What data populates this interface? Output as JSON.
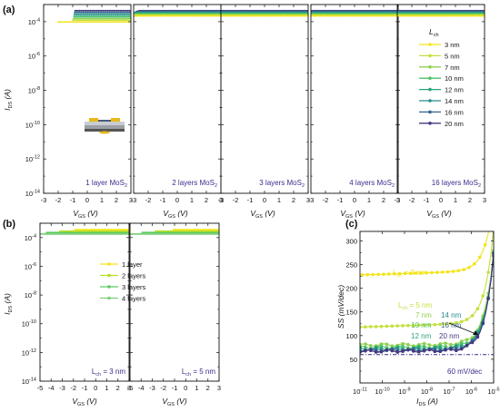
{
  "figure": {
    "panel_labels": [
      "(a)",
      "(b)",
      "(c)"
    ],
    "legend_a_title": "L",
    "legend_a_title_sub": "ch",
    "legend_a_items": [
      "3 nm",
      "5 nm",
      "7 nm",
      "10 nm",
      "12 nm",
      "14 nm",
      "16 nm",
      "20 nm"
    ],
    "legend_b_items": [
      "1 layer",
      "2 layers",
      "3 layers",
      "4 layers"
    ],
    "colors": {
      "3nm": "#f2e41c",
      "5nm": "#c4e03d",
      "7nm": "#8fd14f",
      "10nm": "#4fc169",
      "12nm": "#29a380",
      "14nm": "#2a8a8b",
      "16nm": "#35628d",
      "20nm": "#453781",
      "layer1": "#f2e41c",
      "layer2": "#b8de29",
      "layer3": "#5ec962",
      "layer4": "#7fd07a",
      "text_purple": "#3b2c8c",
      "ref_line": "#3b2c8c"
    }
  },
  "chart_data": [
    {
      "type": "line",
      "panel": "(a)",
      "subplots": [
        {
          "label": "1 layer MoS",
          "label_sub": "2",
          "xlim": [
            -3,
            3
          ]
        },
        {
          "label": "2 layers MoS",
          "label_sub": "2",
          "xlim": [
            -3,
            3
          ]
        },
        {
          "label": "3 layers MoS",
          "label_sub": "2",
          "xlim": [
            -3,
            3
          ]
        },
        {
          "label": "4 layers MoS",
          "label_sub": "2",
          "xlim": [
            -3,
            3
          ]
        },
        {
          "label": "16 layers MoS",
          "label_sub": "2",
          "xlim": [
            -3,
            3
          ]
        }
      ],
      "xlabel": "V",
      "xlabel_sub": "GS",
      "xunit": "(V)",
      "ylabel": "I",
      "ylabel_sub": "DS",
      "yunit": "(A)",
      "yscale": "log",
      "ylim": [
        1e-14,
        0.001
      ],
      "xticks": [
        "-3",
        "-2",
        "-1",
        "0",
        "1",
        "2",
        "3"
      ],
      "yticks": [
        "10",
        "10",
        "10",
        "10",
        "10",
        "10"
      ],
      "ytick_exps": [
        "-14",
        "-12",
        "-10",
        "-8",
        "-6",
        "-4"
      ],
      "ytick_vals": [
        -14,
        -12,
        -10,
        -8,
        -6,
        -4
      ],
      "series_names": [
        "3 nm",
        "5 nm",
        "7 nm",
        "10 nm",
        "12 nm",
        "14 nm",
        "16 nm",
        "20 nm"
      ]
    },
    {
      "type": "line",
      "panel": "(b)",
      "subplots": [
        {
          "label": "L",
          "label_sub": "ch",
          "label_tail": " = 3 nm",
          "xlim": [
            -5,
            3
          ]
        },
        {
          "label": "L",
          "label_sub": "ch",
          "label_tail": " = 5 nm",
          "xlim": [
            -5,
            3
          ]
        }
      ],
      "xlabel": "V",
      "xlabel_sub": "GS",
      "xunit": "(V)",
      "ylabel": "I",
      "ylabel_sub": "DS",
      "yunit": "(A)",
      "yscale": "log",
      "ylim": [
        1e-14,
        0.001
      ],
      "xticks": [
        "-5",
        "-4",
        "-3",
        "-2",
        "-1",
        "0",
        "1",
        "2",
        "3"
      ],
      "yticks": [
        "10",
        "10",
        "10",
        "10",
        "10",
        "10"
      ],
      "ytick_exps": [
        "-14",
        "-12",
        "-10",
        "-8",
        "-6",
        "-4"
      ],
      "ytick_vals": [
        -14,
        -12,
        -10,
        -8,
        -6,
        -4
      ],
      "series_names": [
        "1 layer",
        "2 layers",
        "3 layers",
        "4 layers"
      ]
    },
    {
      "type": "scatter",
      "panel": "(c)",
      "xlabel": "I",
      "xlabel_sub": "DS",
      "xunit": "(A)",
      "ylabel": "SS",
      "yunit": "(mV/dec)",
      "xscale": "log",
      "xlim": [
        1e-11,
        1e-05
      ],
      "ylim": [
        0,
        320
      ],
      "xticks": [
        "10",
        "10",
        "10",
        "10",
        "10",
        "10",
        "10"
      ],
      "xtick_exps": [
        "-11",
        "-10",
        "-9",
        "-8",
        "-7",
        "-6",
        "-5"
      ],
      "xtick_vals": [
        -11,
        -10,
        -9,
        -8,
        -7,
        -6,
        -5
      ],
      "yticks": [
        "50",
        "100",
        "150",
        "200",
        "250",
        "300"
      ],
      "ytick_vals": [
        50,
        100,
        150,
        200,
        250,
        300
      ],
      "annotations": [
        {
          "text_main": "L",
          "text_sub": "ch",
          "text_tail": " = 3 nm"
        },
        {
          "text_main": "L",
          "text_sub": "ch",
          "text_tail": " = 5 nm"
        },
        {
          "text_main": "7 nm"
        },
        {
          "text_main": "14 nm"
        },
        {
          "text_main": "10 nm"
        },
        {
          "text_main": "16 nm"
        },
        {
          "text_main": "12 nm"
        },
        {
          "text_main": "20 nm"
        },
        {
          "text_main": "60 mV/dec"
        }
      ],
      "reference_line": 60,
      "series": [
        {
          "name": "3 nm",
          "ss_floor": 228
        },
        {
          "name": "5 nm",
          "ss_floor": 118
        },
        {
          "name": "7 nm",
          "ss_floor": 80
        },
        {
          "name": "10 nm",
          "ss_floor": 75
        },
        {
          "name": "12 nm",
          "ss_floor": 72
        },
        {
          "name": "14 nm",
          "ss_floor": 70
        },
        {
          "name": "16 nm",
          "ss_floor": 68
        },
        {
          "name": "20 nm",
          "ss_floor": 67
        }
      ]
    }
  ]
}
